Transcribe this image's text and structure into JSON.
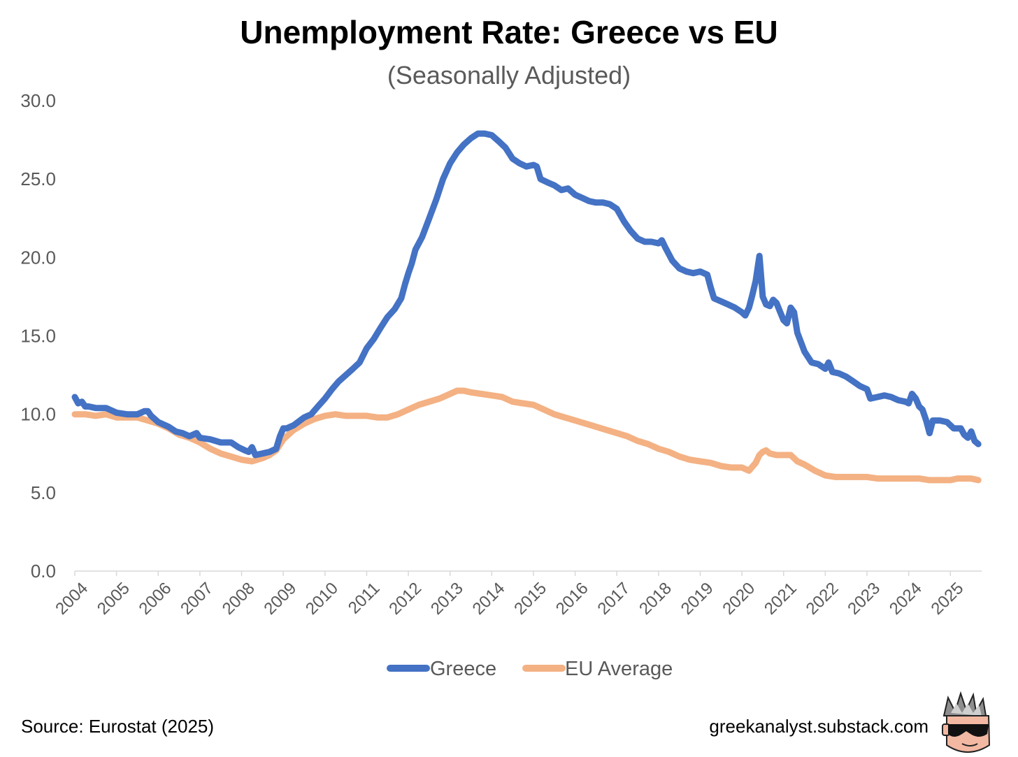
{
  "chart_data": {
    "type": "line",
    "title": "Unemployment Rate: Greece vs EU",
    "subtitle": "(Seasonally Adjusted)",
    "xlabel": "",
    "ylabel": "",
    "ylim": [
      0,
      30
    ],
    "yticks": [
      "0.0",
      "5.0",
      "10.0",
      "15.0",
      "20.0",
      "25.0",
      "30.0"
    ],
    "xticks": [
      "2004",
      "2005",
      "2006",
      "2007",
      "2008",
      "2009",
      "2010",
      "2011",
      "2012",
      "2013",
      "2014",
      "2015",
      "2016",
      "2017",
      "2018",
      "2019",
      "2020",
      "2021",
      "2022",
      "2023",
      "2024",
      "2025"
    ],
    "xrange": [
      2004.0,
      2025.75
    ],
    "grid": false,
    "legend_position": "bottom-center",
    "series": [
      {
        "name": "Greece",
        "color": "#4472C4",
        "points": [
          [
            2004.0,
            11.1
          ],
          [
            2004.08,
            10.7
          ],
          [
            2004.17,
            10.8
          ],
          [
            2004.25,
            10.5
          ],
          [
            2004.33,
            10.5
          ],
          [
            2004.5,
            10.4
          ],
          [
            2004.75,
            10.4
          ],
          [
            2005.0,
            10.1
          ],
          [
            2005.25,
            10.0
          ],
          [
            2005.5,
            10.0
          ],
          [
            2005.67,
            10.2
          ],
          [
            2005.75,
            10.2
          ],
          [
            2005.83,
            9.9
          ],
          [
            2006.0,
            9.5
          ],
          [
            2006.25,
            9.2
          ],
          [
            2006.42,
            8.9
          ],
          [
            2006.58,
            8.8
          ],
          [
            2006.75,
            8.6
          ],
          [
            2006.92,
            8.8
          ],
          [
            2007.0,
            8.5
          ],
          [
            2007.25,
            8.4
          ],
          [
            2007.5,
            8.2
          ],
          [
            2007.75,
            8.2
          ],
          [
            2007.92,
            7.9
          ],
          [
            2008.08,
            7.7
          ],
          [
            2008.17,
            7.6
          ],
          [
            2008.25,
            7.9
          ],
          [
            2008.33,
            7.4
          ],
          [
            2008.5,
            7.5
          ],
          [
            2008.67,
            7.6
          ],
          [
            2008.83,
            7.8
          ],
          [
            2008.92,
            8.6
          ],
          [
            2009.0,
            9.1
          ],
          [
            2009.08,
            9.1
          ],
          [
            2009.25,
            9.3
          ],
          [
            2009.5,
            9.8
          ],
          [
            2009.67,
            10.0
          ],
          [
            2009.83,
            10.5
          ],
          [
            2010.0,
            11.0
          ],
          [
            2010.17,
            11.6
          ],
          [
            2010.33,
            12.1
          ],
          [
            2010.5,
            12.5
          ],
          [
            2010.67,
            12.9
          ],
          [
            2010.83,
            13.3
          ],
          [
            2011.0,
            14.2
          ],
          [
            2011.17,
            14.8
          ],
          [
            2011.33,
            15.5
          ],
          [
            2011.5,
            16.2
          ],
          [
            2011.67,
            16.7
          ],
          [
            2011.83,
            17.4
          ],
          [
            2011.92,
            18.3
          ],
          [
            2012.0,
            19.0
          ],
          [
            2012.08,
            19.6
          ],
          [
            2012.17,
            20.5
          ],
          [
            2012.33,
            21.3
          ],
          [
            2012.5,
            22.5
          ],
          [
            2012.67,
            23.7
          ],
          [
            2012.83,
            25.0
          ],
          [
            2013.0,
            26.0
          ],
          [
            2013.17,
            26.7
          ],
          [
            2013.33,
            27.2
          ],
          [
            2013.5,
            27.6
          ],
          [
            2013.67,
            27.9
          ],
          [
            2013.83,
            27.9
          ],
          [
            2014.0,
            27.8
          ],
          [
            2014.17,
            27.4
          ],
          [
            2014.33,
            27.0
          ],
          [
            2014.5,
            26.3
          ],
          [
            2014.67,
            26.0
          ],
          [
            2014.83,
            25.8
          ],
          [
            2015.0,
            25.9
          ],
          [
            2015.08,
            25.8
          ],
          [
            2015.17,
            25.0
          ],
          [
            2015.33,
            24.8
          ],
          [
            2015.5,
            24.6
          ],
          [
            2015.67,
            24.3
          ],
          [
            2015.83,
            24.4
          ],
          [
            2016.0,
            24.0
          ],
          [
            2016.17,
            23.8
          ],
          [
            2016.33,
            23.6
          ],
          [
            2016.5,
            23.5
          ],
          [
            2016.67,
            23.5
          ],
          [
            2016.83,
            23.4
          ],
          [
            2017.0,
            23.1
          ],
          [
            2017.17,
            22.3
          ],
          [
            2017.33,
            21.7
          ],
          [
            2017.5,
            21.2
          ],
          [
            2017.67,
            21.0
          ],
          [
            2017.83,
            21.0
          ],
          [
            2018.0,
            20.9
          ],
          [
            2018.08,
            21.1
          ],
          [
            2018.17,
            20.6
          ],
          [
            2018.33,
            19.8
          ],
          [
            2018.5,
            19.3
          ],
          [
            2018.67,
            19.1
          ],
          [
            2018.83,
            19.0
          ],
          [
            2019.0,
            19.1
          ],
          [
            2019.17,
            18.9
          ],
          [
            2019.25,
            18.1
          ],
          [
            2019.33,
            17.4
          ],
          [
            2019.5,
            17.2
          ],
          [
            2019.67,
            17.0
          ],
          [
            2019.83,
            16.8
          ],
          [
            2020.0,
            16.5
          ],
          [
            2020.08,
            16.3
          ],
          [
            2020.17,
            16.8
          ],
          [
            2020.25,
            17.6
          ],
          [
            2020.33,
            18.5
          ],
          [
            2020.42,
            20.1
          ],
          [
            2020.5,
            17.5
          ],
          [
            2020.58,
            17.0
          ],
          [
            2020.67,
            16.9
          ],
          [
            2020.75,
            17.3
          ],
          [
            2020.83,
            17.1
          ],
          [
            2020.92,
            16.5
          ],
          [
            2021.0,
            16.0
          ],
          [
            2021.08,
            15.8
          ],
          [
            2021.17,
            16.8
          ],
          [
            2021.25,
            16.5
          ],
          [
            2021.33,
            15.2
          ],
          [
            2021.5,
            14.0
          ],
          [
            2021.67,
            13.3
          ],
          [
            2021.83,
            13.2
          ],
          [
            2022.0,
            12.9
          ],
          [
            2022.08,
            13.3
          ],
          [
            2022.17,
            12.7
          ],
          [
            2022.33,
            12.6
          ],
          [
            2022.5,
            12.4
          ],
          [
            2022.67,
            12.1
          ],
          [
            2022.83,
            11.8
          ],
          [
            2023.0,
            11.6
          ],
          [
            2023.08,
            11.0
          ],
          [
            2023.25,
            11.1
          ],
          [
            2023.42,
            11.2
          ],
          [
            2023.58,
            11.1
          ],
          [
            2023.75,
            10.9
          ],
          [
            2023.92,
            10.8
          ],
          [
            2024.0,
            10.7
          ],
          [
            2024.08,
            11.3
          ],
          [
            2024.17,
            11.0
          ],
          [
            2024.25,
            10.5
          ],
          [
            2024.33,
            10.3
          ],
          [
            2024.42,
            9.6
          ],
          [
            2024.5,
            8.8
          ],
          [
            2024.58,
            9.6
          ],
          [
            2024.75,
            9.6
          ],
          [
            2024.92,
            9.5
          ],
          [
            2025.08,
            9.1
          ],
          [
            2025.25,
            9.1
          ],
          [
            2025.33,
            8.7
          ],
          [
            2025.42,
            8.5
          ],
          [
            2025.5,
            8.9
          ],
          [
            2025.58,
            8.3
          ],
          [
            2025.67,
            8.1
          ]
        ]
      },
      {
        "name": "EU Average",
        "color": "#F4B183",
        "points": [
          [
            2004.0,
            10.0
          ],
          [
            2004.25,
            10.0
          ],
          [
            2004.5,
            9.9
          ],
          [
            2004.75,
            10.0
          ],
          [
            2005.0,
            9.8
          ],
          [
            2005.25,
            9.8
          ],
          [
            2005.5,
            9.8
          ],
          [
            2005.75,
            9.6
          ],
          [
            2006.0,
            9.4
          ],
          [
            2006.25,
            9.1
          ],
          [
            2006.5,
            8.7
          ],
          [
            2006.75,
            8.5
          ],
          [
            2007.0,
            8.2
          ],
          [
            2007.25,
            7.8
          ],
          [
            2007.5,
            7.5
          ],
          [
            2007.75,
            7.3
          ],
          [
            2008.0,
            7.1
          ],
          [
            2008.25,
            7.0
          ],
          [
            2008.5,
            7.2
          ],
          [
            2008.67,
            7.4
          ],
          [
            2008.83,
            7.7
          ],
          [
            2009.0,
            8.4
          ],
          [
            2009.25,
            9.0
          ],
          [
            2009.5,
            9.4
          ],
          [
            2009.75,
            9.7
          ],
          [
            2010.0,
            9.9
          ],
          [
            2010.25,
            10.0
          ],
          [
            2010.5,
            9.9
          ],
          [
            2010.75,
            9.9
          ],
          [
            2011.0,
            9.9
          ],
          [
            2011.25,
            9.8
          ],
          [
            2011.5,
            9.8
          ],
          [
            2011.75,
            10.0
          ],
          [
            2012.0,
            10.3
          ],
          [
            2012.25,
            10.6
          ],
          [
            2012.5,
            10.8
          ],
          [
            2012.75,
            11.0
          ],
          [
            2013.0,
            11.3
          ],
          [
            2013.17,
            11.5
          ],
          [
            2013.33,
            11.5
          ],
          [
            2013.5,
            11.4
          ],
          [
            2013.75,
            11.3
          ],
          [
            2014.0,
            11.2
          ],
          [
            2014.25,
            11.1
          ],
          [
            2014.5,
            10.8
          ],
          [
            2014.75,
            10.7
          ],
          [
            2015.0,
            10.6
          ],
          [
            2015.25,
            10.3
          ],
          [
            2015.5,
            10.0
          ],
          [
            2015.75,
            9.8
          ],
          [
            2016.0,
            9.6
          ],
          [
            2016.25,
            9.4
          ],
          [
            2016.5,
            9.2
          ],
          [
            2016.75,
            9.0
          ],
          [
            2017.0,
            8.8
          ],
          [
            2017.25,
            8.6
          ],
          [
            2017.5,
            8.3
          ],
          [
            2017.75,
            8.1
          ],
          [
            2018.0,
            7.8
          ],
          [
            2018.25,
            7.6
          ],
          [
            2018.5,
            7.3
          ],
          [
            2018.75,
            7.1
          ],
          [
            2019.0,
            7.0
          ],
          [
            2019.25,
            6.9
          ],
          [
            2019.5,
            6.7
          ],
          [
            2019.75,
            6.6
          ],
          [
            2020.0,
            6.6
          ],
          [
            2020.17,
            6.4
          ],
          [
            2020.33,
            6.9
          ],
          [
            2020.42,
            7.4
          ],
          [
            2020.5,
            7.6
          ],
          [
            2020.58,
            7.7
          ],
          [
            2020.67,
            7.5
          ],
          [
            2020.83,
            7.4
          ],
          [
            2021.0,
            7.4
          ],
          [
            2021.17,
            7.4
          ],
          [
            2021.33,
            7.0
          ],
          [
            2021.5,
            6.8
          ],
          [
            2021.75,
            6.4
          ],
          [
            2022.0,
            6.1
          ],
          [
            2022.25,
            6.0
          ],
          [
            2022.5,
            6.0
          ],
          [
            2022.75,
            6.0
          ],
          [
            2023.0,
            6.0
          ],
          [
            2023.25,
            5.9
          ],
          [
            2023.5,
            5.9
          ],
          [
            2023.75,
            5.9
          ],
          [
            2024.0,
            5.9
          ],
          [
            2024.25,
            5.9
          ],
          [
            2024.5,
            5.8
          ],
          [
            2024.75,
            5.8
          ],
          [
            2024.92,
            5.8
          ],
          [
            2025.0,
            5.8
          ],
          [
            2025.17,
            5.9
          ],
          [
            2025.33,
            5.9
          ],
          [
            2025.5,
            5.9
          ],
          [
            2025.67,
            5.8
          ]
        ]
      }
    ]
  },
  "footer": {
    "source": "Source: Eurostat (2025)",
    "website": "greekanalyst.substack.com"
  },
  "logo": {
    "icon": "sunglasses-face-icon"
  }
}
